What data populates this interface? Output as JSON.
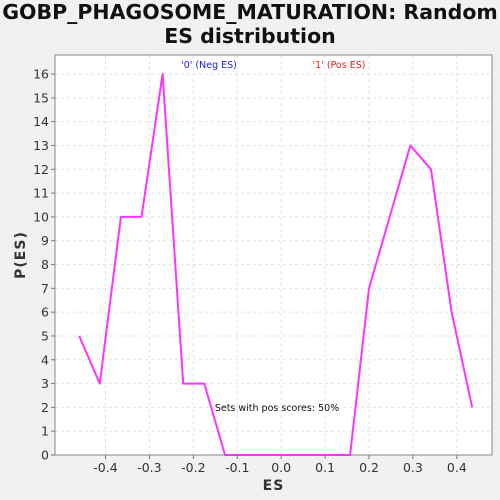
{
  "colors": {
    "series": "#ff33ff",
    "legend_neg": "#2222cc",
    "legend_pos": "#dd2222",
    "grid": "#e2e2e2",
    "plot_bg": "#ffffff",
    "page_bg": "#f1f1f1"
  },
  "chart_data": {
    "type": "line",
    "title_lines": [
      "GOBP_PHAGOSOME_MATURATION: Random",
      "ES distribution"
    ],
    "xlabel": "ES",
    "ylabel": "P(ES)",
    "xlim": [
      -0.515,
      0.48
    ],
    "ylim": [
      0,
      16.8
    ],
    "xticks": [
      -0.4,
      -0.3,
      -0.2,
      -0.1,
      0.0,
      0.1,
      0.2,
      0.3,
      0.4
    ],
    "xtick_labels": [
      "-0.4",
      "-0.3",
      "-0.2",
      "-0.1",
      "0.0",
      "0.1",
      "0.2",
      "0.3",
      "0.4"
    ],
    "yticks": [
      0,
      1,
      2,
      3,
      4,
      5,
      6,
      7,
      8,
      9,
      10,
      11,
      12,
      13,
      14,
      15,
      16
    ],
    "ytick_labels": [
      "0",
      "1",
      "2",
      "3",
      "4",
      "5",
      "6",
      "7",
      "8",
      "9",
      "10",
      "11",
      "12",
      "13",
      "14",
      "15",
      "16"
    ],
    "grid": true,
    "legend": [
      {
        "label": "'0' (Neg ES)",
        "color": "#2222cc"
      },
      {
        "label": "'1' (Pos ES)",
        "color": "#dd2222"
      }
    ],
    "annotation": "Sets with pos scores: 50%",
    "series": [
      {
        "x": [
          -0.46,
          -0.413,
          -0.365,
          -0.318,
          -0.27,
          -0.223,
          -0.175,
          -0.128,
          -0.08,
          -0.033,
          0.015,
          0.062,
          0.11,
          0.157,
          0.2,
          0.247,
          0.294,
          0.341,
          0.388,
          0.435
        ],
        "y": [
          5,
          3,
          10,
          10,
          16,
          3,
          3,
          0,
          0,
          0,
          0,
          0,
          0,
          0,
          7,
          10,
          13,
          12,
          6,
          2
        ]
      }
    ]
  }
}
